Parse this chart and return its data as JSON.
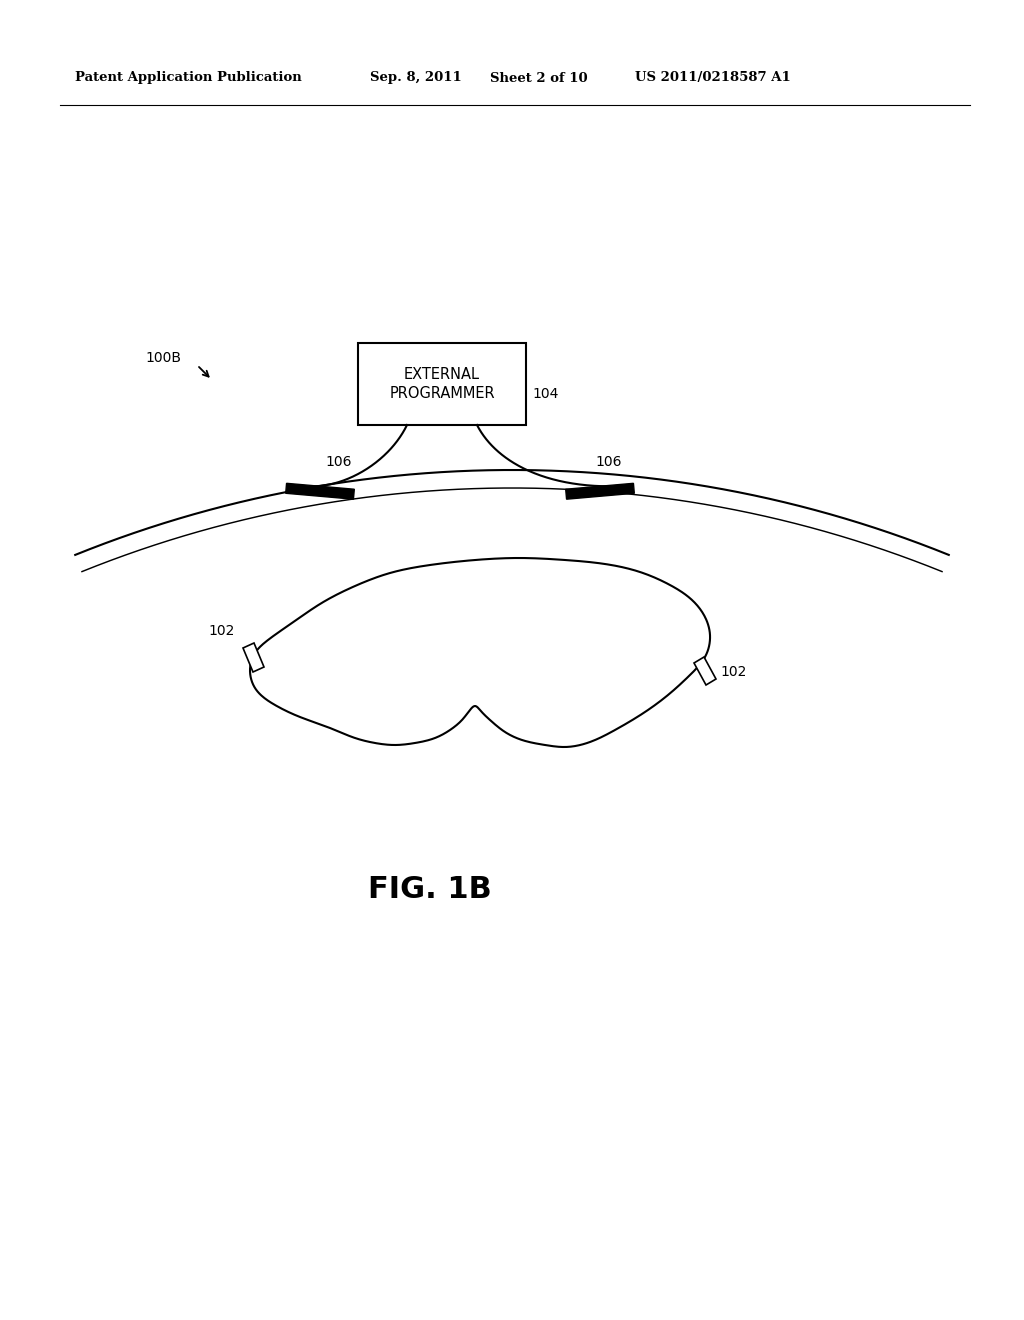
{
  "bg_color": "#ffffff",
  "line_color": "#000000",
  "header_text1": "Patent Application Publication",
  "header_text2": "Sep. 8, 2011",
  "header_text3": "Sheet 2 of 10",
  "header_text4": "US 2011/0218587 A1",
  "fig_label": "FIG. 1B",
  "label_100B": "100B",
  "label_104": "104",
  "label_106_left": "106",
  "label_106_right": "106",
  "label_102_left": "102",
  "label_102_right": "102",
  "box_label_line1": "EXTERNAL",
  "box_label_line2": "PROGRAMMER"
}
